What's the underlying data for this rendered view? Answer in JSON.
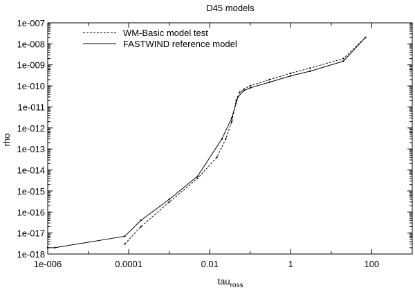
{
  "chart_data": {
    "type": "line",
    "title": "D45 models",
    "xlabel": "tau",
    "xlabel_sub": "ross",
    "ylabel": "rho",
    "xscale": "log",
    "yscale": "log",
    "xlim": [
      1e-06,
      1000
    ],
    "ylim": [
      1e-18,
      1e-07
    ],
    "grid": false,
    "legend_position": "top-left",
    "x_ticks": [
      {
        "value": 1e-06,
        "label": "1e-006"
      },
      {
        "value": 0.0001,
        "label": "0.0001"
      },
      {
        "value": 0.01,
        "label": "0.01"
      },
      {
        "value": 1,
        "label": "1"
      },
      {
        "value": 100,
        "label": "100"
      }
    ],
    "y_ticks": [
      {
        "value": 1e-18,
        "label": "1e-018"
      },
      {
        "value": 1e-17,
        "label": "1e-017"
      },
      {
        "value": 1e-16,
        "label": "1e-016"
      },
      {
        "value": 1e-15,
        "label": "1e-015"
      },
      {
        "value": 1e-14,
        "label": "1e-014"
      },
      {
        "value": 1e-13,
        "label": "1e-013"
      },
      {
        "value": 1e-12,
        "label": "1e-012"
      },
      {
        "value": 1e-11,
        "label": "1e-011"
      },
      {
        "value": 1e-10,
        "label": "1e-010"
      },
      {
        "value": 1e-09,
        "label": "1e-009"
      },
      {
        "value": 1e-08,
        "label": "1e-008"
      },
      {
        "value": 1e-07,
        "label": "1e-007"
      }
    ],
    "series": [
      {
        "name": "WM-Basic model test",
        "style": "dashed",
        "color": "#000000",
        "x": [
          8e-05,
          0.0002,
          0.001,
          0.005,
          0.015,
          0.025,
          0.035,
          0.045,
          0.055,
          0.07,
          0.1,
          0.3,
          1,
          3,
          20,
          70
        ],
        "y": [
          3e-18,
          2e-17,
          3e-16,
          4e-15,
          4e-14,
          3e-13,
          2e-12,
          2e-11,
          5e-11,
          7e-11,
          1e-10,
          2e-10,
          4e-10,
          7e-10,
          2e-09,
          2e-08
        ]
      },
      {
        "name": "FASTWIND reference model",
        "style": "solid",
        "color": "#000000",
        "x": [
          1e-06,
          1.5e-06,
          8e-05,
          0.0002,
          0.001,
          0.005,
          0.02,
          0.035,
          0.05,
          0.07,
          0.1,
          0.3,
          1,
          3,
          20,
          70
        ],
        "y": [
          2e-18,
          2e-18,
          7e-18,
          4e-17,
          4e-16,
          5e-15,
          3e-13,
          3e-12,
          3e-11,
          6e-11,
          8e-11,
          1.5e-10,
          3e-10,
          5e-10,
          1.5e-09,
          2e-08
        ]
      }
    ]
  }
}
